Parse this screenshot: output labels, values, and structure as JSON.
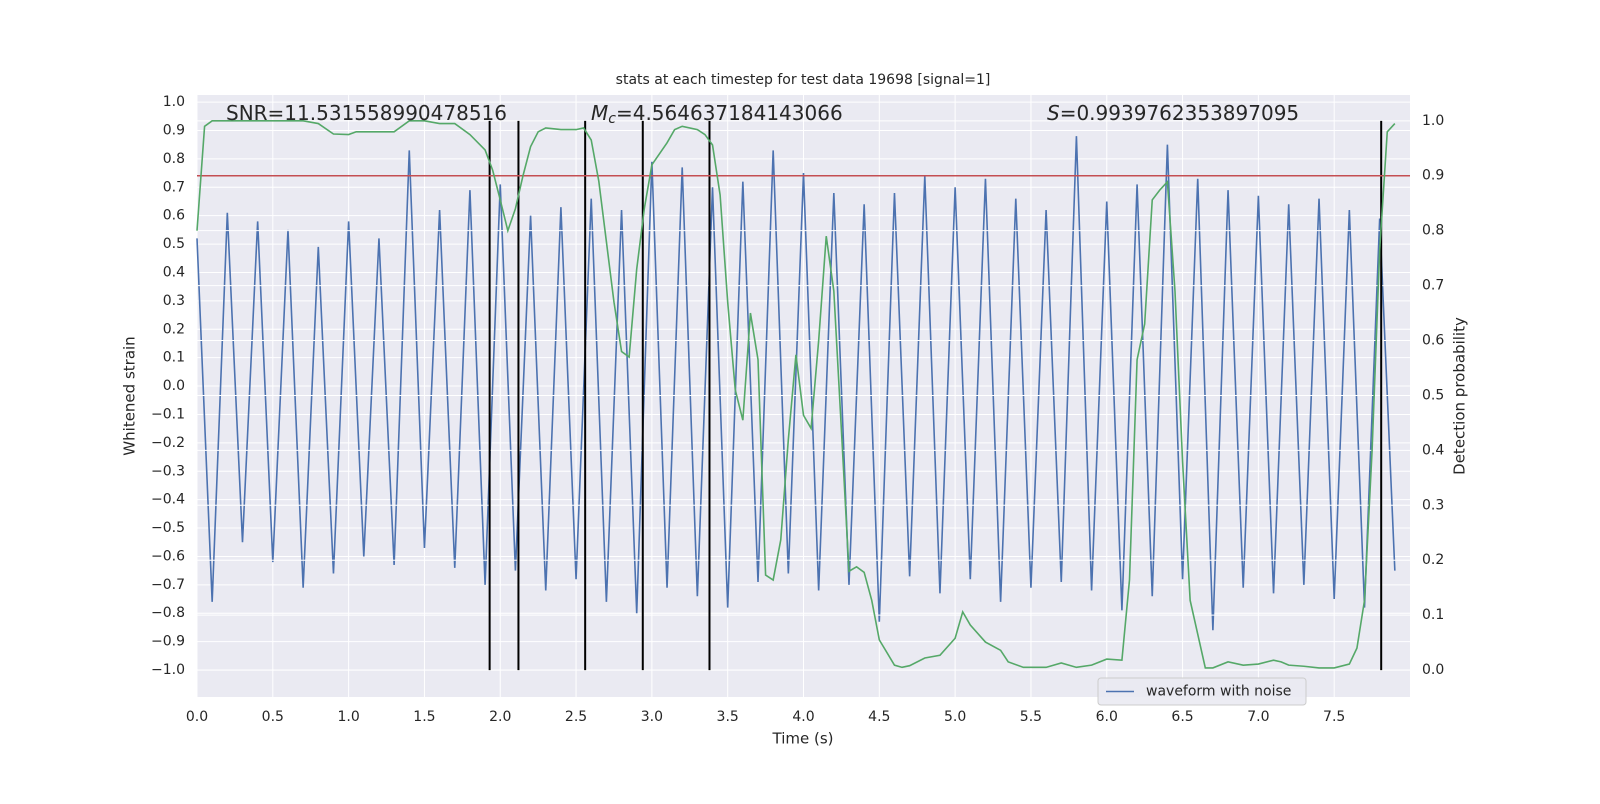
{
  "chart_data": {
    "type": "line",
    "title": "stats at each timestep for test data 19698 [signal=1]",
    "xlabel": "Time (s)",
    "ylabel": "Whitened strain",
    "y2label": "Detection probability",
    "annotations": [
      {
        "text": "SNR=11.531558990478516"
      },
      {
        "symbol": "M",
        "subscript": "c",
        "text": "=4.564637184143066"
      },
      {
        "symbol": "S",
        "text": "=0.9939762353897095"
      }
    ],
    "xlim": [
      0,
      8.0
    ],
    "ylim": [
      -1.095,
      1.025
    ],
    "y2lim": [
      -0.049,
      1.047
    ],
    "xticks": [
      {
        "value": 0,
        "label": "0.0"
      },
      {
        "value": 0.5,
        "label": "0.5"
      },
      {
        "value": 1,
        "label": "1.0"
      },
      {
        "value": 1.5,
        "label": "1.5"
      },
      {
        "value": 2,
        "label": "2.0"
      },
      {
        "value": 2.5,
        "label": "2.5"
      },
      {
        "value": 3,
        "label": "3.0"
      },
      {
        "value": 3.5,
        "label": "3.5"
      },
      {
        "value": 4,
        "label": "4.0"
      },
      {
        "value": 4.5,
        "label": "4.5"
      },
      {
        "value": 5,
        "label": "5.0"
      },
      {
        "value": 5.5,
        "label": "5.5"
      },
      {
        "value": 6,
        "label": "6.0"
      },
      {
        "value": 6.5,
        "label": "6.5"
      },
      {
        "value": 7,
        "label": "7.0"
      },
      {
        "value": 7.5,
        "label": "7.5"
      }
    ],
    "yticks": [
      {
        "value": -1,
        "label": "−1.0"
      },
      {
        "value": -0.9,
        "label": "−0.9"
      },
      {
        "value": -0.8,
        "label": "−0.8"
      },
      {
        "value": -0.7,
        "label": "−0.7"
      },
      {
        "value": -0.6,
        "label": "−0.6"
      },
      {
        "value": -0.5,
        "label": "−0.5"
      },
      {
        "value": -0.4,
        "label": "−0.4"
      },
      {
        "value": -0.3,
        "label": "−0.3"
      },
      {
        "value": -0.2,
        "label": "−0.2"
      },
      {
        "value": -0.1,
        "label": "−0.1"
      },
      {
        "value": 0,
        "label": "0.0"
      },
      {
        "value": 0.1,
        "label": "0.1"
      },
      {
        "value": 0.2,
        "label": "0.2"
      },
      {
        "value": 0.3,
        "label": "0.3"
      },
      {
        "value": 0.4,
        "label": "0.4"
      },
      {
        "value": 0.5,
        "label": "0.5"
      },
      {
        "value": 0.6,
        "label": "0.6"
      },
      {
        "value": 0.7,
        "label": "0.7"
      },
      {
        "value": 0.8,
        "label": "0.8"
      },
      {
        "value": 0.9,
        "label": "0.9"
      },
      {
        "value": 1,
        "label": "1.0"
      }
    ],
    "y2ticks": [
      {
        "value": 0,
        "label": "0.0"
      },
      {
        "value": 0.1,
        "label": "0.1"
      },
      {
        "value": 0.2,
        "label": "0.2"
      },
      {
        "value": 0.3,
        "label": "0.3"
      },
      {
        "value": 0.4,
        "label": "0.4"
      },
      {
        "value": 0.5,
        "label": "0.5"
      },
      {
        "value": 0.6,
        "label": "0.6"
      },
      {
        "value": 0.7,
        "label": "0.7"
      },
      {
        "value": 0.8,
        "label": "0.8"
      },
      {
        "value": 0.9,
        "label": "0.9"
      },
      {
        "value": 1,
        "label": "1.0"
      }
    ],
    "grid": true,
    "legend_loc": "lower right",
    "series": [
      {
        "name": "waveform with noise",
        "color": "#4c72b0",
        "x": [
          0,
          0.1,
          0.2,
          0.3,
          0.4,
          0.5,
          0.6,
          0.7,
          0.8,
          0.9,
          1.0,
          1.1,
          1.2,
          1.3,
          1.4,
          1.5,
          1.6,
          1.7,
          1.8,
          1.9,
          2.0,
          2.1,
          2.2,
          2.3,
          2.4,
          2.5,
          2.6,
          2.7,
          2.8,
          2.9,
          3.0,
          3.1,
          3.2,
          3.3,
          3.4,
          3.5,
          3.6,
          3.7,
          3.8,
          3.9,
          4.0,
          4.1,
          4.2,
          4.3,
          4.4,
          4.5,
          4.6,
          4.7,
          4.8,
          4.9,
          5.0,
          5.1,
          5.2,
          5.3,
          5.4,
          5.5,
          5.6,
          5.7,
          5.8,
          5.9,
          6.0,
          6.1,
          6.2,
          6.3,
          6.4,
          6.5,
          6.6,
          6.7,
          6.8,
          6.9,
          7.0,
          7.1,
          7.2,
          7.3,
          7.4,
          7.5,
          7.6,
          7.7,
          7.8,
          7.9
        ],
        "values": [
          0.52,
          -0.76,
          0.61,
          -0.55,
          0.58,
          -0.62,
          0.55,
          -0.71,
          0.49,
          -0.66,
          0.58,
          -0.6,
          0.52,
          -0.63,
          0.83,
          -0.57,
          0.62,
          -0.64,
          0.69,
          -0.7,
          0.71,
          -0.65,
          0.6,
          -0.72,
          0.63,
          -0.68,
          0.66,
          -0.76,
          0.62,
          -0.8,
          0.79,
          -0.71,
          0.77,
          -0.74,
          0.7,
          -0.78,
          0.72,
          -0.69,
          0.83,
          -0.66,
          0.75,
          -0.72,
          0.68,
          -0.7,
          0.64,
          -0.83,
          0.68,
          -0.67,
          0.74,
          -0.73,
          0.7,
          -0.68,
          0.73,
          -0.76,
          0.66,
          -0.71,
          0.62,
          -0.69,
          0.88,
          -0.72,
          0.65,
          -0.79,
          0.71,
          -0.74,
          0.85,
          -0.68,
          0.73,
          -0.86,
          0.69,
          -0.71,
          0.67,
          -0.73,
          0.64,
          -0.7,
          0.66,
          -0.75,
          0.62,
          -0.78,
          0.59,
          -0.65
        ]
      },
      {
        "color": "#55a868",
        "axis": "y2",
        "x": [
          0,
          0.05,
          0.1,
          0.2,
          0.3,
          0.4,
          0.5,
          0.6,
          0.7,
          0.8,
          0.9,
          1.0,
          1.05,
          1.1,
          1.2,
          1.3,
          1.4,
          1.5,
          1.6,
          1.7,
          1.8,
          1.9,
          1.95,
          2.0,
          2.05,
          2.1,
          2.15,
          2.2,
          2.25,
          2.3,
          2.4,
          2.5,
          2.55,
          2.6,
          2.65,
          2.7,
          2.75,
          2.8,
          2.85,
          2.9,
          2.95,
          3.0,
          3.1,
          3.15,
          3.2,
          3.3,
          3.35,
          3.4,
          3.45,
          3.5,
          3.55,
          3.6,
          3.65,
          3.7,
          3.75,
          3.8,
          3.85,
          3.9,
          3.95,
          4.0,
          4.05,
          4.1,
          4.15,
          4.2,
          4.25,
          4.3,
          4.35,
          4.4,
          4.45,
          4.5,
          4.6,
          4.65,
          4.7,
          4.8,
          4.9,
          5.0,
          5.05,
          5.1,
          5.2,
          5.3,
          5.35,
          5.45,
          5.6,
          5.7,
          5.8,
          5.9,
          6.0,
          6.1,
          6.15,
          6.2,
          6.25,
          6.3,
          6.35,
          6.4,
          6.45,
          6.5,
          6.55,
          6.65,
          6.7,
          6.8,
          6.9,
          7.0,
          7.1,
          7.15,
          7.2,
          7.3,
          7.4,
          7.5,
          7.6,
          7.65,
          7.7,
          7.75,
          7.8,
          7.85,
          7.9
        ],
        "values": [
          0.8,
          0.99,
          1.0,
          1.0,
          1.0,
          1.0,
          1.0,
          1.0,
          1.0,
          0.995,
          0.976,
          0.975,
          0.98,
          0.98,
          0.98,
          0.98,
          1.0,
          1.0,
          0.995,
          0.995,
          0.975,
          0.947,
          0.91,
          0.856,
          0.8,
          0.84,
          0.9,
          0.953,
          0.98,
          0.987,
          0.984,
          0.984,
          0.987,
          0.965,
          0.89,
          0.78,
          0.67,
          0.58,
          0.57,
          0.73,
          0.84,
          0.92,
          0.96,
          0.984,
          0.99,
          0.984,
          0.975,
          0.956,
          0.865,
          0.67,
          0.51,
          0.455,
          0.65,
          0.565,
          0.173,
          0.164,
          0.237,
          0.42,
          0.574,
          0.464,
          0.44,
          0.6,
          0.79,
          0.69,
          0.437,
          0.18,
          0.188,
          0.178,
          0.127,
          0.055,
          0.009,
          0.005,
          0.008,
          0.022,
          0.027,
          0.058,
          0.106,
          0.082,
          0.051,
          0.036,
          0.015,
          0.005,
          0.005,
          0.013,
          0.005,
          0.009,
          0.02,
          0.018,
          0.164,
          0.565,
          0.63,
          0.856,
          0.874,
          0.889,
          0.69,
          0.38,
          0.127,
          0.004,
          0.004,
          0.015,
          0.009,
          0.011,
          0.018,
          0.015,
          0.009,
          0.007,
          0.004,
          0.004,
          0.011,
          0.04,
          0.127,
          0.4,
          0.765,
          0.98,
          0.995
        ]
      }
    ],
    "hline": {
      "y": 0.9,
      "axis": "y2",
      "color": "#c44e52"
    },
    "vlines": {
      "x": [
        1.93,
        2.12,
        2.56,
        2.94,
        3.38,
        7.81
      ],
      "ymin": 0,
      "ymax": 1,
      "axis": "y2",
      "color": "#000000"
    }
  }
}
